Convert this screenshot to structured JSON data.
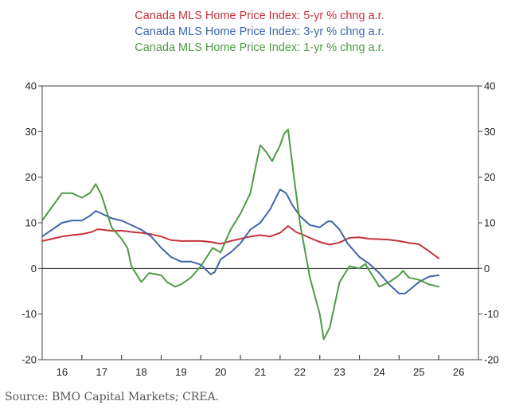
{
  "chart_data": {
    "type": "line",
    "title": "",
    "xlabel": "",
    "ylabel": "",
    "ylim": [
      -20,
      40
    ],
    "yticks": [
      -20,
      -10,
      0,
      10,
      20,
      30,
      40
    ],
    "ytick_labels": [
      "-20",
      "-10",
      "0",
      "10",
      "20",
      "30",
      "40"
    ],
    "xlim": [
      2015.5,
      2026.5
    ],
    "xtick_labels": [
      {
        "label": "16",
        "year": 2016
      },
      {
        "label": "17",
        "year": 2017
      },
      {
        "label": "18",
        "year": 2018
      },
      {
        "label": "19",
        "year": 2019
      },
      {
        "label": "20",
        "year": 2020
      },
      {
        "label": "21",
        "year": 2021
      },
      {
        "label": "22",
        "year": 2022
      },
      {
        "label": "23",
        "year": 2023
      },
      {
        "label": "24",
        "year": 2024
      },
      {
        "label": "25",
        "year": 2025
      },
      {
        "label": "26",
        "year": 2026
      }
    ],
    "grid": false,
    "zero_line": true,
    "legend_position": "top-center",
    "series": [
      {
        "name": "Canada MLS Home Price Index: 5-yr % chng a.r.",
        "color": "#c8323c",
        "x": [
          2015.5,
          2015.75,
          2016,
          2016.25,
          2016.5,
          2016.75,
          2016.9,
          2017.1,
          2017.3,
          2017.5,
          2017.75,
          2018,
          2018.25,
          2018.5,
          2018.75,
          2019,
          2019.25,
          2019.5,
          2019.75,
          2020,
          2020.25,
          2020.5,
          2020.75,
          2021,
          2021.25,
          2021.5,
          2021.7,
          2021.9,
          2022.1,
          2022.3,
          2022.5,
          2022.75,
          2023,
          2023.25,
          2023.5,
          2023.75,
          2024,
          2024.25,
          2024.5,
          2024.75,
          2025,
          2025.25,
          2025.5
        ],
        "values": [
          6.0,
          6.5,
          7.0,
          7.3,
          7.5,
          8.0,
          8.6,
          8.4,
          8.2,
          8.3,
          8.0,
          7.8,
          7.5,
          7.0,
          6.2,
          6.0,
          6.0,
          6.0,
          5.8,
          5.4,
          6.0,
          6.5,
          7.0,
          7.3,
          7.0,
          7.8,
          9.3,
          8.0,
          7.3,
          6.5,
          5.8,
          5.2,
          5.7,
          6.7,
          6.8,
          6.5,
          6.4,
          6.3,
          6.0,
          5.6,
          5.3,
          3.8,
          2.2
        ]
      },
      {
        "name": "Canada MLS Home Price Index: 3-yr % chng a.r.",
        "color": "#3f65a8",
        "x": [
          2015.5,
          2015.75,
          2016,
          2016.25,
          2016.5,
          2016.7,
          2016.85,
          2017,
          2017.25,
          2017.5,
          2017.75,
          2018,
          2018.25,
          2018.5,
          2018.75,
          2019,
          2019.25,
          2019.5,
          2019.75,
          2019.85,
          2020,
          2020.25,
          2020.5,
          2020.75,
          2021,
          2021.25,
          2021.5,
          2021.65,
          2021.8,
          2022,
          2022.25,
          2022.5,
          2022.7,
          2022.8,
          2023,
          2023.2,
          2023.5,
          2023.75,
          2024,
          2024.25,
          2024.5,
          2024.65,
          2024.75,
          2025,
          2025.25,
          2025.5
        ],
        "values": [
          7.0,
          8.5,
          10.0,
          10.5,
          10.5,
          11.5,
          12.6,
          12.0,
          11.0,
          10.5,
          9.5,
          8.5,
          7.0,
          4.5,
          2.5,
          1.5,
          1.5,
          0.8,
          -1.3,
          -0.8,
          2.0,
          3.5,
          5.5,
          8.5,
          10.0,
          13.0,
          17.3,
          16.5,
          14.0,
          11.5,
          9.5,
          9.0,
          10.3,
          10.3,
          8.5,
          5.5,
          2.5,
          1.0,
          -1.0,
          -3.5,
          -5.5,
          -5.5,
          -4.8,
          -3.0,
          -1.8,
          -1.5
        ]
      },
      {
        "name": "Canada MLS Home Price Index: 1-yr % chng a.r.",
        "color": "#4c9c46",
        "x": [
          2015.5,
          2015.75,
          2016,
          2016.25,
          2016.5,
          2016.7,
          2016.85,
          2017,
          2017.25,
          2017.5,
          2017.65,
          2017.75,
          2018,
          2018.2,
          2018.5,
          2018.65,
          2018.85,
          2019,
          2019.25,
          2019.5,
          2019.65,
          2019.8,
          2020,
          2020.25,
          2020.5,
          2020.75,
          2020.9,
          2021,
          2021.15,
          2021.3,
          2021.5,
          2021.6,
          2021.7,
          2021.85,
          2022,
          2022.25,
          2022.5,
          2022.6,
          2022.75,
          2023,
          2023.25,
          2023.5,
          2023.65,
          2023.75,
          2024,
          2024.25,
          2024.5,
          2024.6,
          2024.75,
          2025,
          2025.25,
          2025.5
        ],
        "values": [
          10.5,
          13.5,
          16.5,
          16.5,
          15.5,
          16.5,
          18.5,
          16.0,
          9.0,
          6.5,
          4.5,
          0.5,
          -3.0,
          -1.0,
          -1.5,
          -3.0,
          -4.0,
          -3.5,
          -2.0,
          0.5,
          2.5,
          4.5,
          3.5,
          8.5,
          12.0,
          16.5,
          23.0,
          27.0,
          25.5,
          23.5,
          27.0,
          29.5,
          30.5,
          20.0,
          10.0,
          -2.0,
          -10.0,
          -15.5,
          -13.0,
          -3.0,
          0.5,
          0.0,
          1.0,
          -0.5,
          -4.0,
          -3.0,
          -1.5,
          -0.5,
          -2.0,
          -2.5,
          -3.5,
          -4.0
        ]
      }
    ]
  },
  "source_text": "Source: BMO Capital Markets; CREA."
}
